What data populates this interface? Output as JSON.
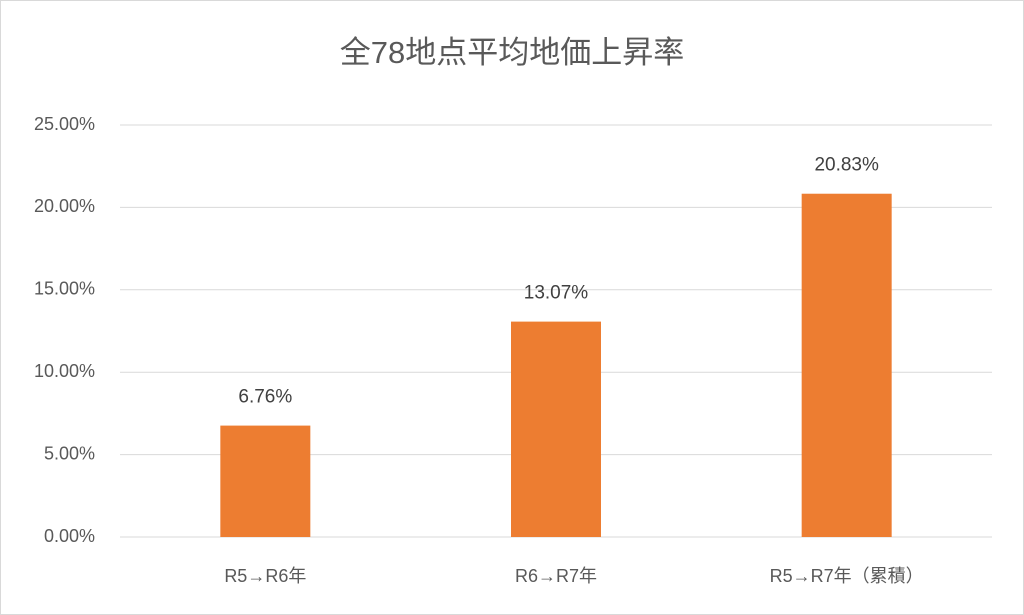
{
  "chart_data": {
    "type": "bar",
    "title": "全78地点平均地価上昇率",
    "categories": [
      "R5→R6年",
      "R6→R7年",
      "R5→R7年（累積）"
    ],
    "values": [
      6.76,
      13.07,
      20.83
    ],
    "value_labels": [
      "6.76%",
      "13.07%",
      "20.83%"
    ],
    "color": "#ed7d31",
    "ylim": [
      0,
      25
    ],
    "yticks": [
      {
        "value": 0,
        "label": "0.00%"
      },
      {
        "value": 5,
        "label": "5.00%"
      },
      {
        "value": 10,
        "label": "10.00%"
      },
      {
        "value": 15,
        "label": "15.00%"
      },
      {
        "value": 20,
        "label": "20.00%"
      },
      {
        "value": 25,
        "label": "25.00%"
      }
    ],
    "grid": true
  }
}
